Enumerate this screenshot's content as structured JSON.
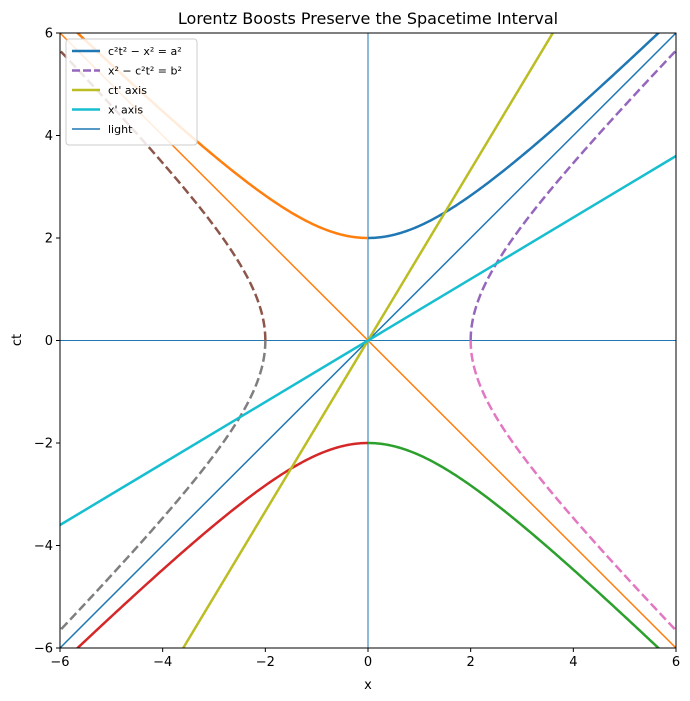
{
  "chart_data": {
    "type": "line",
    "title": "Lorentz Boosts Preserve the Spacetime Interval",
    "xlabel": "x",
    "ylabel": "ct",
    "xlim": [
      -6,
      6
    ],
    "ylim": [
      -6,
      6
    ],
    "xticks": [
      -6,
      -4,
      -2,
      0,
      2,
      4,
      6
    ],
    "yticks": [
      -6,
      -4,
      -2,
      0,
      2,
      4,
      6
    ],
    "xtick_labels": [
      "−6",
      "−4",
      "−2",
      "0",
      "2",
      "4",
      "6"
    ],
    "ytick_labels": [
      "−6",
      "−4",
      "−2",
      "0",
      "2",
      "4",
      "6"
    ],
    "grid": false,
    "legend_position": "upper-left",
    "parameters": {
      "a": 2,
      "b": 2,
      "ct_prime_axis_slope": 1.667,
      "x_prime_axis_slope": 0.6
    },
    "legend": [
      {
        "label": "c²t² − x² = a²",
        "color": "#1f77b4",
        "dash": false
      },
      {
        "label": "x² − c²t² = b²",
        "color": "#9467bd",
        "dash": true
      },
      {
        "label": "ct' axis",
        "color": "#bcbd22",
        "dash": false
      },
      {
        "label": "x' axis",
        "color": "#17becf",
        "dash": false
      },
      {
        "label": "light",
        "color": "#1f77b4",
        "dash": false
      }
    ],
    "series": [
      {
        "kind": "hyperbola_time",
        "branch": "upper-right",
        "color": "#1f77b4",
        "dash": false,
        "x_range": [
          0,
          6
        ],
        "sign": 1
      },
      {
        "kind": "hyperbola_time",
        "branch": "upper-left",
        "color": "#ff7f0e",
        "dash": false,
        "x_range": [
          -6,
          0
        ],
        "sign": 1
      },
      {
        "kind": "hyperbola_time",
        "branch": "lower-right",
        "color": "#2ca02c",
        "dash": false,
        "x_range": [
          0,
          6
        ],
        "sign": -1
      },
      {
        "kind": "hyperbola_time",
        "branch": "lower-left",
        "color": "#d62728",
        "dash": false,
        "x_range": [
          -6,
          0
        ],
        "sign": -1
      },
      {
        "kind": "hyperbola_space",
        "branch": "right-upper",
        "color": "#9467bd",
        "dash": true,
        "ct_range": [
          0,
          6
        ],
        "sign": 1
      },
      {
        "kind": "hyperbola_space",
        "branch": "left-upper",
        "color": "#8c564b",
        "dash": true,
        "ct_range": [
          0,
          6
        ],
        "sign": -1
      },
      {
        "kind": "hyperbola_space",
        "branch": "right-lower",
        "color": "#e377c2",
        "dash": true,
        "ct_range": [
          -6,
          0
        ],
        "sign": 1
      },
      {
        "kind": "hyperbola_space",
        "branch": "left-lower",
        "color": "#7f7f7f",
        "dash": true,
        "ct_range": [
          -6,
          0
        ],
        "sign": -1
      },
      {
        "kind": "line",
        "name": "ct' axis",
        "color": "#bcbd22",
        "points": [
          [
            -3.6,
            -6
          ],
          [
            3.6,
            6
          ]
        ]
      },
      {
        "kind": "line",
        "name": "x' axis",
        "color": "#17becf",
        "points": [
          [
            -6,
            -3.6
          ],
          [
            6,
            3.6
          ]
        ]
      },
      {
        "kind": "line",
        "name": "light",
        "color": "#1f77b4",
        "points": [
          [
            -6,
            -6
          ],
          [
            6,
            6
          ]
        ],
        "width": 1.5
      },
      {
        "kind": "line",
        "name": "light",
        "color": "#ff7f0e",
        "points": [
          [
            -6,
            6
          ],
          [
            6,
            -6
          ]
        ],
        "width": 1.5
      },
      {
        "kind": "line",
        "name": "x axis",
        "color": "#1f77b4",
        "points": [
          [
            -6,
            0
          ],
          [
            6,
            0
          ]
        ],
        "width": 1
      },
      {
        "kind": "line",
        "name": "ct axis",
        "color": "#1f77b4",
        "points": [
          [
            0,
            -6
          ],
          [
            0,
            6
          ]
        ],
        "width": 1
      }
    ]
  }
}
